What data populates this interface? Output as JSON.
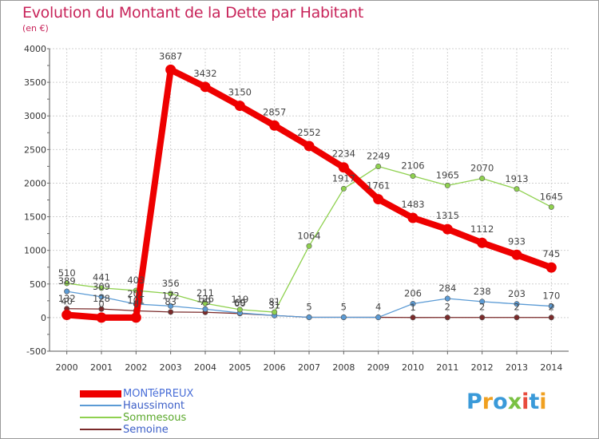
{
  "title": "Evolution du Montant de la Dette par Habitant",
  "unit": "(en €)",
  "logo": {
    "text": "Proxiti",
    "colors": [
      "#3a9ad9",
      "#f0a020",
      "#3a9ad9",
      "#7ac143",
      "#e84c3d",
      "#3a9ad9",
      "#f0a020"
    ]
  },
  "chart_data": {
    "type": "line",
    "title": "Evolution du Montant de la Dette par Habitant",
    "ylabel": "(en €)",
    "xlabel": "",
    "ylim": [
      -500,
      4000
    ],
    "yticks": [
      -500,
      0,
      500,
      1000,
      1500,
      2000,
      2500,
      3000,
      3500,
      4000
    ],
    "grid": true,
    "categories": [
      "2000",
      "2001",
      "2002",
      "2003",
      "2004",
      "2005",
      "2006",
      "2007",
      "2008",
      "2009",
      "2010",
      "2011",
      "2012",
      "2013",
      "2014"
    ],
    "series": [
      {
        "name": "Semoine",
        "color": "#7a2a2a",
        "values": [
          132,
          128,
          101,
          83,
          79,
          60,
          31,
          5,
          5,
          4,
          1,
          2,
          2,
          2,
          2
        ],
        "labels": [
          "132",
          "128",
          "101",
          "83",
          "79",
          "60",
          "31",
          "5",
          "5",
          "4",
          "1",
          "2",
          "2",
          "2",
          "2"
        ]
      },
      {
        "name": "Haussimont",
        "color": "#5b9bd5",
        "values": [
          389,
          309,
          201,
          172,
          126,
          69,
          31,
          5,
          5,
          4,
          206,
          284,
          238,
          203,
          170
        ],
        "labels": [
          "389",
          "309",
          "201",
          "172",
          "126",
          "69",
          "31",
          "",
          "",
          "",
          "206",
          "284",
          "238",
          "203",
          "170"
        ]
      },
      {
        "name": "Sommesous",
        "color": "#8fd14f",
        "values": [
          510,
          441,
          403,
          356,
          211,
          119,
          81,
          1064,
          1917,
          2249,
          2106,
          1965,
          2070,
          1913,
          1645
        ],
        "labels": [
          "510",
          "441",
          "403",
          "356",
          "211",
          "119",
          "81",
          "1064",
          "1917",
          "2249",
          "2106",
          "1965",
          "2070",
          "1913",
          "1645"
        ]
      },
      {
        "name": "MONTéPREUX",
        "color": "#ee0000",
        "values": [
          40,
          0,
          0,
          3687,
          3432,
          3150,
          2857,
          2552,
          2234,
          1761,
          1483,
          1315,
          1112,
          933,
          745
        ],
        "labels": [
          "40",
          "0",
          "0",
          "3687",
          "3432",
          "3150",
          "2857",
          "2552",
          "2234",
          "1761",
          "1483",
          "1315",
          "1112",
          "933",
          "745"
        ]
      }
    ],
    "legend": [
      {
        "name": "MONTéPREUX",
        "color": "#ee0000",
        "thick": true
      },
      {
        "name": "Haussimont",
        "color": "#5b9bd5"
      },
      {
        "name": "Sommesous",
        "color": "#8fd14f"
      },
      {
        "name": "Semoine",
        "color": "#7a2a2a"
      }
    ],
    "legend_position": "bottom-left"
  }
}
